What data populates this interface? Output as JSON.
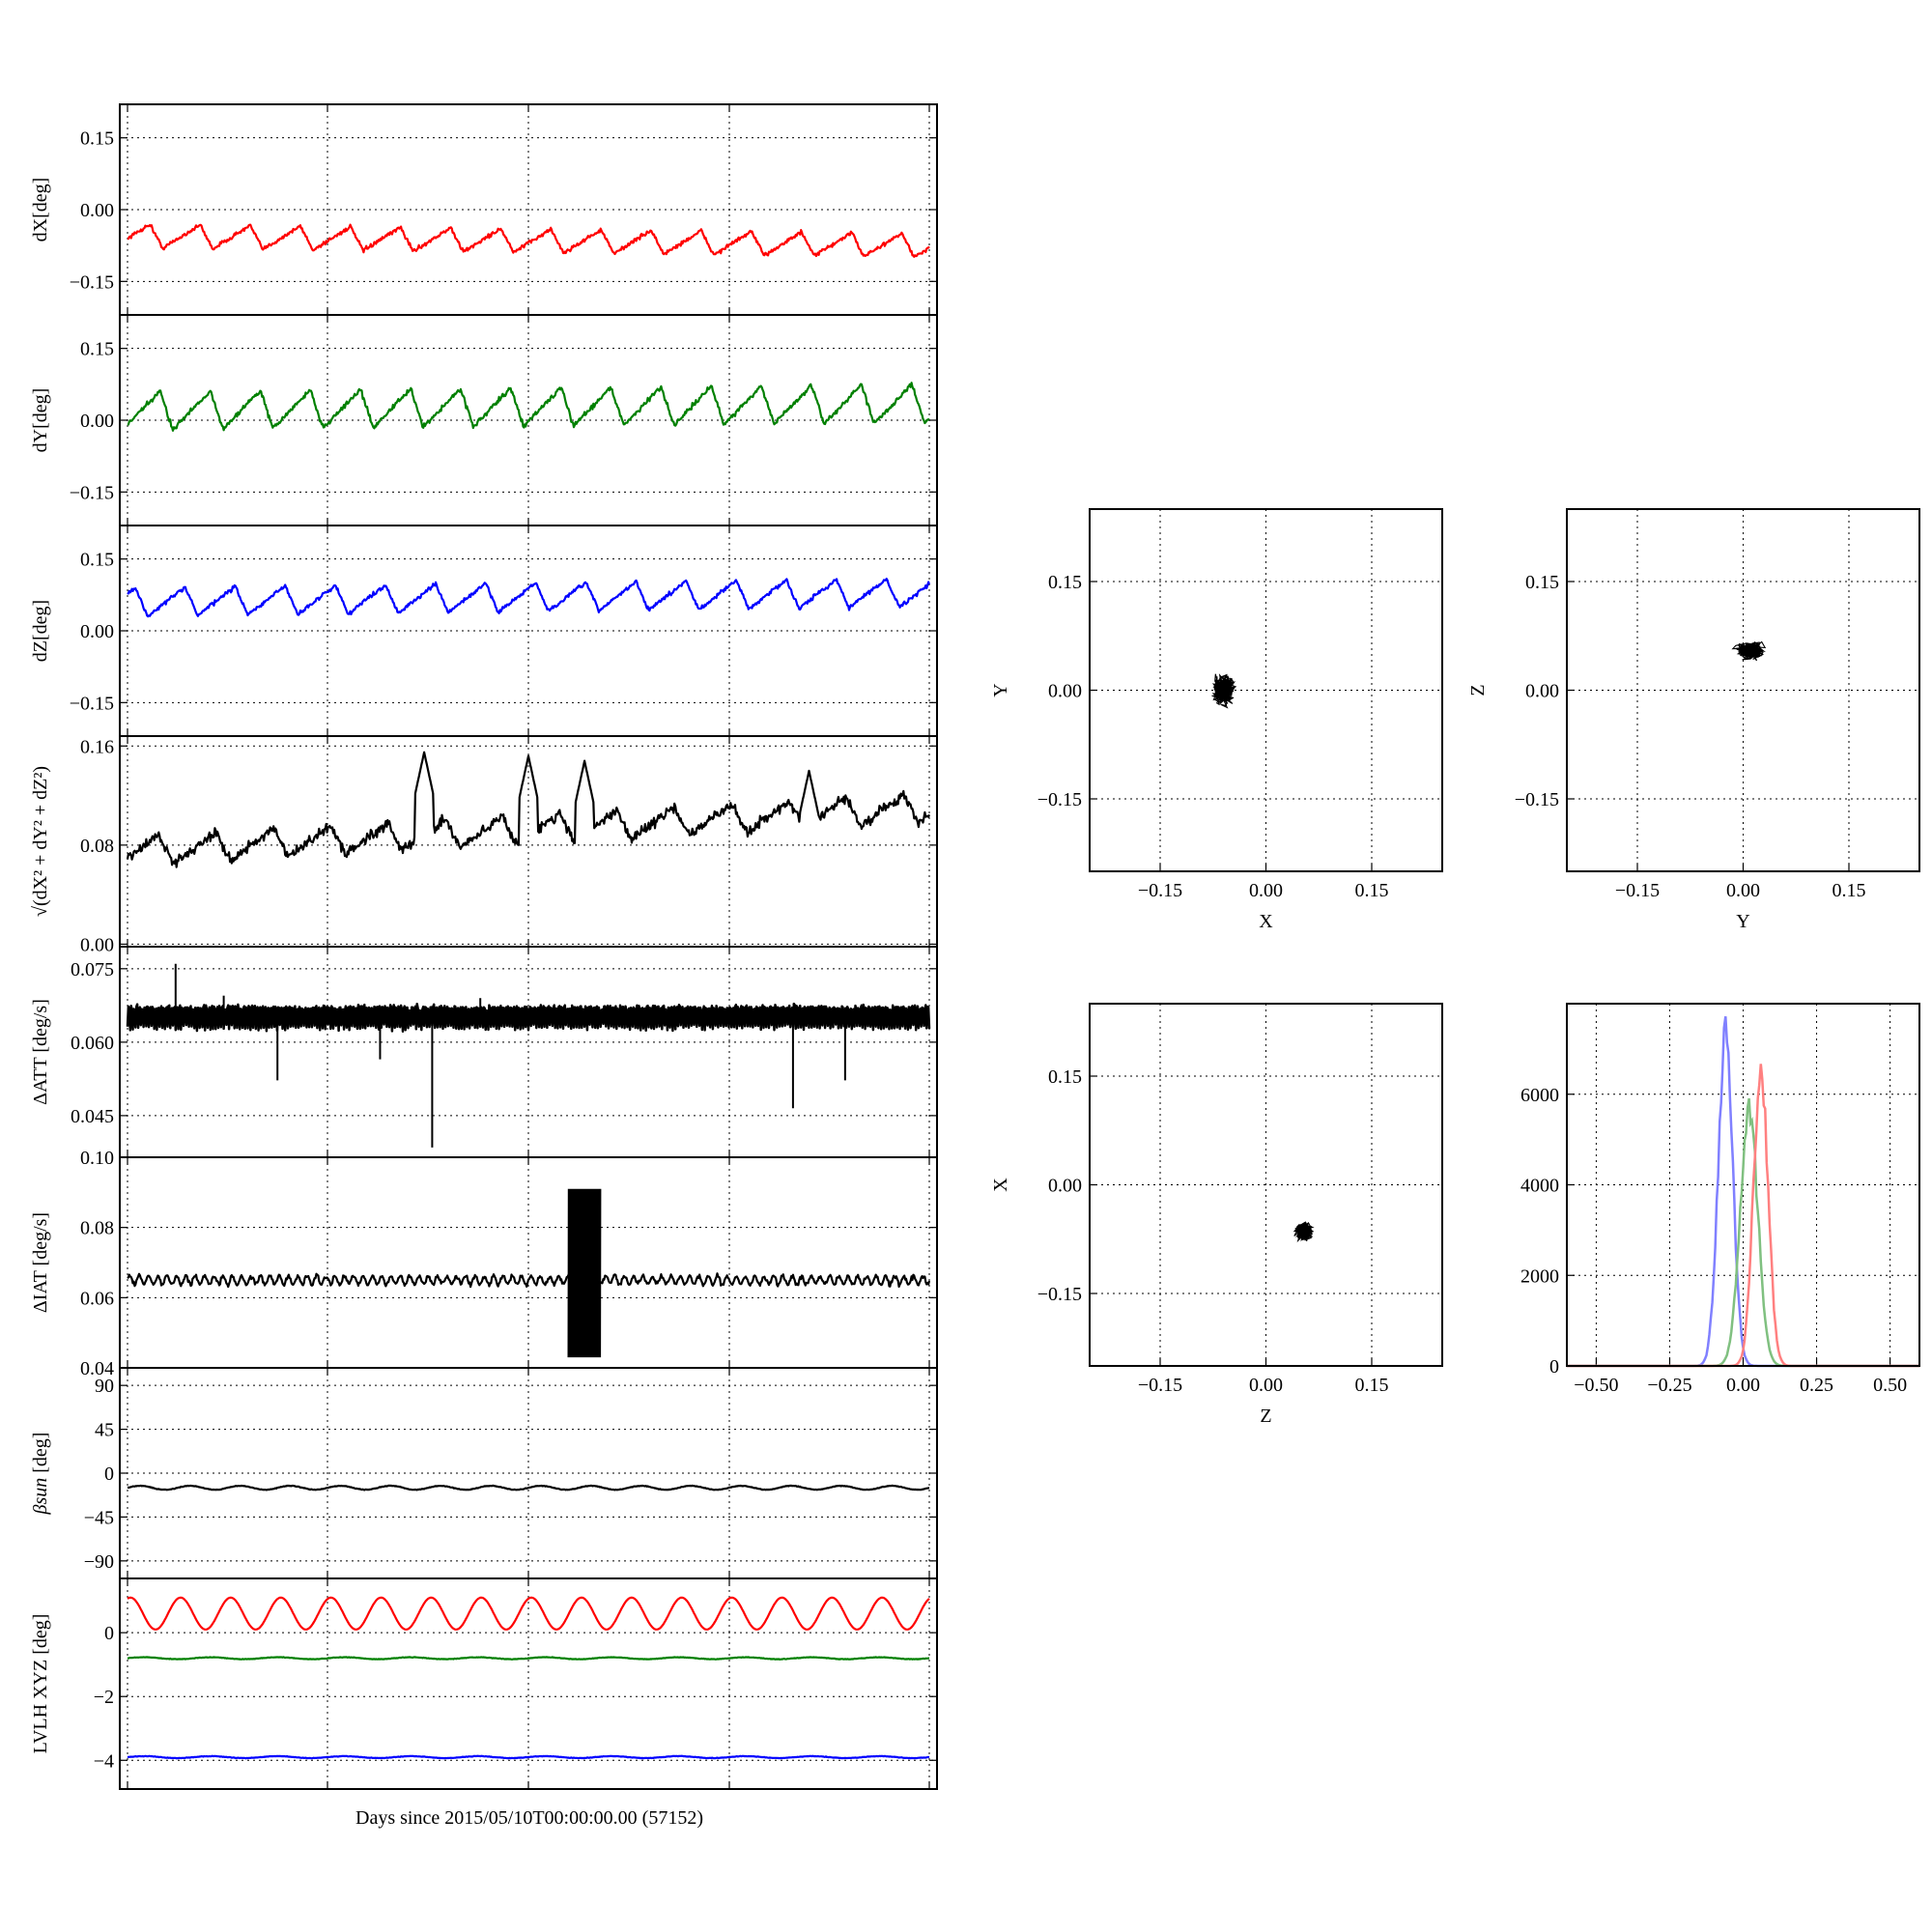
{
  "figure": {
    "xlabel": "Days since 2015/05/10T00:00:00.00 (57152)"
  },
  "chart_data": [
    {
      "id": "dx",
      "type": "line",
      "ylabel": "dX[deg]",
      "ylim": [
        -0.22,
        0.22
      ],
      "yticks": [
        "0.15",
        "0.00",
        "−0.15"
      ],
      "ytick_values": [
        0.15,
        0.0,
        -0.15
      ],
      "grid": true,
      "series": [
        {
          "color": "#ff0000",
          "approx_mean": -0.055,
          "oscillation_amplitude": 0.025,
          "cycles": 16
        }
      ]
    },
    {
      "id": "dy",
      "type": "line",
      "ylabel": "dY[deg]",
      "ylim": [
        -0.22,
        0.22
      ],
      "yticks": [
        "0.15",
        "0.00",
        "−0.15"
      ],
      "ytick_values": [
        0.15,
        0.0,
        -0.15
      ],
      "grid": true,
      "series": [
        {
          "color": "#008000",
          "approx_mean": 0.02,
          "oscillation_amplitude": 0.04,
          "cycles": 16
        }
      ]
    },
    {
      "id": "dz",
      "type": "line",
      "ylabel": "dZ[deg]",
      "ylim": [
        -0.22,
        0.22
      ],
      "yticks": [
        "0.15",
        "0.00",
        "−0.15"
      ],
      "ytick_values": [
        0.15,
        0.0,
        -0.15
      ],
      "grid": true,
      "series": [
        {
          "color": "#0000ff",
          "approx_mean": 0.06,
          "oscillation_amplitude": 0.03,
          "cycles": 16
        }
      ]
    },
    {
      "id": "mag",
      "type": "line",
      "ylabel": "√(dX² + dY² + dZ²)",
      "ylim": [
        -0.002,
        0.168
      ],
      "yticks": [
        "0.16",
        "0.08",
        "0.00"
      ],
      "ytick_values": [
        0.16,
        0.08,
        0.0
      ],
      "grid": true,
      "series": [
        {
          "color": "#000000",
          "approx_start": 0.075,
          "approx_end": 0.11,
          "peaks": [
            0.15,
            0.155,
            0.148,
            0.14
          ]
        }
      ]
    },
    {
      "id": "datt",
      "type": "line",
      "ylabel": "ΔATT [deg/s]",
      "ylim": [
        0.0365,
        0.0795
      ],
      "yticks": [
        "0.075",
        "0.060",
        "0.045"
      ],
      "ytick_values": [
        0.075,
        0.06,
        0.045
      ],
      "grid": true,
      "series": [
        {
          "color": "#000000",
          "approx_mean": 0.0655,
          "band": [
            0.063,
            0.068
          ],
          "spikes_up": [
            0.076,
            0.0695,
            0.069
          ],
          "spikes_down": [
            0.0522,
            0.0565,
            0.0385,
            0.0465,
            0.0522
          ]
        }
      ]
    },
    {
      "id": "diat",
      "type": "line",
      "ylabel": "ΔIAT [deg/s]",
      "ylim": [
        0.04,
        0.1
      ],
      "yticks": [
        "0.10",
        "0.08",
        "0.06",
        "0.04"
      ],
      "ytick_values": [
        0.1,
        0.08,
        0.06,
        0.04
      ],
      "grid": true,
      "series": [
        {
          "color": "#000000",
          "approx_mean": 0.065,
          "burst_range": [
            0.043,
            0.091
          ]
        }
      ]
    },
    {
      "id": "beta",
      "type": "line",
      "ylabel": "βsun [deg]",
      "ylim": [
        -108,
        108
      ],
      "yticks": [
        "90",
        "45",
        "0",
        "−45",
        "−90"
      ],
      "ytick_values": [
        90,
        45,
        0,
        -45,
        -90
      ],
      "grid": true,
      "series": [
        {
          "color": "#000000",
          "approx_mean": -15,
          "oscillation_amplitude": 2
        }
      ]
    },
    {
      "id": "lvlh",
      "type": "line",
      "ylabel": "LVLH XYZ [deg]",
      "ylim": [
        -4.9,
        1.7
      ],
      "yticks": [
        "0",
        "−2",
        "−4"
      ],
      "ytick_values": [
        0,
        -2,
        -4
      ],
      "grid": true,
      "series": [
        {
          "color": "#ff0000",
          "approx_range": [
            0.1,
            1.1
          ],
          "cycles": 16
        },
        {
          "color": "#008000",
          "approx_mean": -0.8
        },
        {
          "color": "#0000ff",
          "approx_mean": -3.9
        }
      ]
    },
    {
      "id": "scatter_xy",
      "type": "scatter",
      "xlabel": "X",
      "ylabel": "Y",
      "xlim": [
        -0.25,
        0.25
      ],
      "ylim": [
        -0.25,
        0.25
      ],
      "xticks": [
        "−0.15",
        "0.00",
        "0.15"
      ],
      "yticks": [
        "0.15",
        "0.00",
        "−0.15"
      ],
      "tick_values": [
        -0.15,
        0.0,
        0.15
      ],
      "grid": true,
      "cluster_center": [
        -0.06,
        0.0
      ],
      "cluster_spread": [
        0.04,
        0.05
      ]
    },
    {
      "id": "scatter_yz",
      "type": "scatter",
      "xlabel": "Y",
      "ylabel": "Z",
      "xlim": [
        -0.25,
        0.25
      ],
      "ylim": [
        -0.25,
        0.25
      ],
      "xticks": [
        "−0.15",
        "0.00",
        "0.15"
      ],
      "yticks": [
        "0.15",
        "0.00",
        "−0.15"
      ],
      "tick_values": [
        -0.15,
        0.0,
        0.15
      ],
      "grid": true,
      "cluster_center": [
        0.01,
        0.055
      ],
      "cluster_spread": [
        0.05,
        0.03
      ]
    },
    {
      "id": "scatter_zx",
      "type": "scatter",
      "xlabel": "Z",
      "ylabel": "X",
      "xlim": [
        -0.25,
        0.25
      ],
      "ylim": [
        -0.25,
        0.25
      ],
      "xticks": [
        "−0.15",
        "0.00",
        "0.15"
      ],
      "yticks": [
        "0.15",
        "0.00",
        "−0.15"
      ],
      "tick_values": [
        -0.15,
        0.0,
        0.15
      ],
      "grid": true,
      "cluster_center": [
        0.055,
        -0.065
      ],
      "cluster_spread": [
        0.03,
        0.035
      ]
    },
    {
      "id": "hist",
      "type": "histogram",
      "xlim": [
        -0.6,
        0.6
      ],
      "ylim": [
        0,
        8000
      ],
      "xticks": [
        "−0.50",
        "−0.25",
        "0.00",
        "0.25",
        "0.50"
      ],
      "xtick_values": [
        -0.5,
        -0.25,
        0.0,
        0.25,
        0.5
      ],
      "yticks": [
        "6000",
        "4000",
        "2000",
        "0"
      ],
      "ytick_values": [
        6000,
        4000,
        2000,
        0
      ],
      "grid": true,
      "series": [
        {
          "color": "#8080ff",
          "center": -0.06,
          "sigma": 0.025,
          "peak": 7800
        },
        {
          "color": "#80c080",
          "center": 0.02,
          "sigma": 0.03,
          "peak": 6000
        },
        {
          "color": "#ff8080",
          "center": 0.06,
          "sigma": 0.025,
          "peak": 7000
        }
      ]
    }
  ]
}
